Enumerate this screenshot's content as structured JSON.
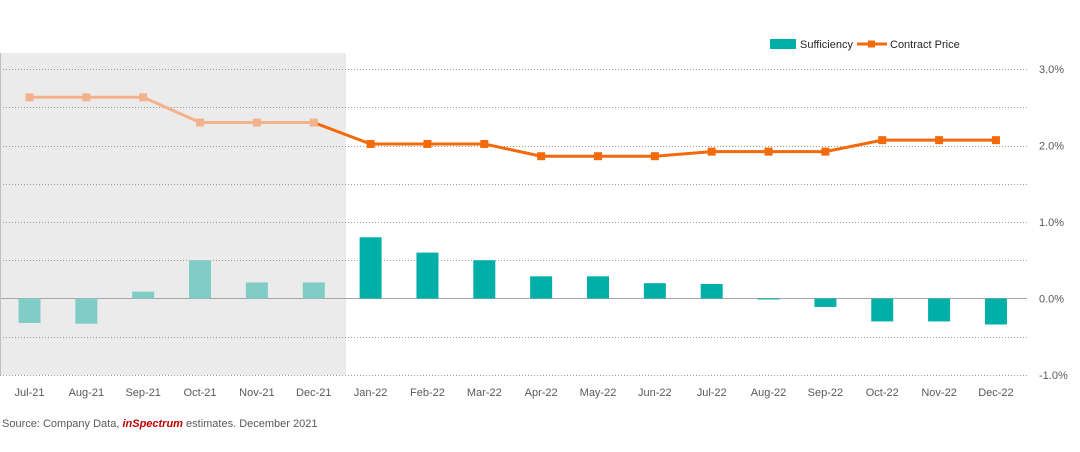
{
  "chart_data": {
    "type": "bar+line",
    "categories": [
      "Jul-21",
      "Aug-21",
      "Sep-21",
      "Oct-21",
      "Nov-21",
      "Dec-21",
      "Jan-22",
      "Feb-22",
      "Mar-22",
      "Apr-22",
      "May-22",
      "Jun-22",
      "Jul-22",
      "Aug-22",
      "Sep-22",
      "Oct-22",
      "Nov-22",
      "Dec-22"
    ],
    "series": [
      {
        "name": "Sufficiency",
        "type": "bar",
        "axis": "right",
        "values": [
          -0.32,
          -0.33,
          0.09,
          0.5,
          0.21,
          0.21,
          0.8,
          0.6,
          0.5,
          0.29,
          0.29,
          0.2,
          0.19,
          -0.01,
          -0.11,
          -0.3,
          -0.3,
          -0.34
        ]
      },
      {
        "name": "Contract Price",
        "type": "line",
        "axis": "right",
        "values": [
          2.63,
          2.63,
          2.63,
          2.3,
          2.3,
          2.3,
          2.02,
          2.02,
          2.02,
          1.86,
          1.86,
          1.86,
          1.92,
          1.92,
          1.92,
          2.07,
          2.07,
          2.07
        ]
      }
    ],
    "y_ticks": [
      "3.0%",
      "2.0%",
      "1.0%",
      "0.0%",
      "-1.0%"
    ],
    "y_tick_values": [
      3.0,
      2.0,
      1.0,
      0.0,
      -1.0
    ],
    "ylim": [
      -1.0,
      3.0
    ],
    "historical_shading": {
      "from": "Jul-21",
      "to": "Dec-21"
    },
    "grid": true,
    "legend_position": "top-right",
    "colors": {
      "bar": "#00b0a8",
      "bar_faded": "#80cdc8",
      "line": "#f26a0a",
      "line_faded": "#f4b28c",
      "shading": "#ebebeb",
      "grid": "#7f7f7f"
    }
  },
  "footer": {
    "source_prefix": "Source: Company Data, ",
    "source_brand": "inSpectrum",
    "source_suffix": " estimates. December 2021"
  }
}
